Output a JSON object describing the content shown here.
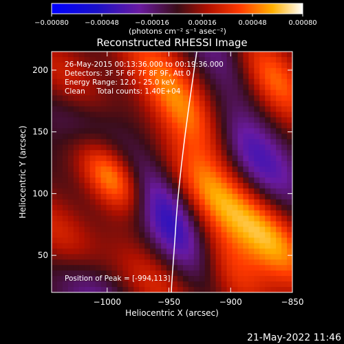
{
  "chart_data": {
    "type": "heatmap",
    "title": "Reconstructed RHESSI Image",
    "xlabel": "Heliocentric X (arcsec)",
    "ylabel": "Heliocentric Y (arcsec)",
    "xlim": [
      -1045,
      -850
    ],
    "ylim": [
      20,
      215
    ],
    "x_ticks": [
      -1000,
      -950,
      -900,
      -850
    ],
    "x_tick_labels": [
      "−1000",
      "−950",
      "−900",
      "−850"
    ],
    "y_ticks": [
      50,
      100,
      150,
      200
    ],
    "y_tick_labels": [
      "50",
      "100",
      "150",
      "200"
    ],
    "colorbar": {
      "ticks": [
        -0.0008,
        -0.00048,
        -0.00016,
        0.00016,
        0.00048,
        0.0008
      ],
      "tick_labels": [
        "−0.00080",
        "−0.00048",
        "−0.00016",
        "0.00016",
        "0.00048",
        "0.00080"
      ],
      "units_label": "(photons cm⁻² s⁻¹ asec⁻²)",
      "range": [
        -0.0008,
        0.0008
      ]
    },
    "annotations": [
      "26-May-2015 00:13:36.000 to 00:19:36.000",
      "Detectors: 3F 5F 6F 7F 8F 9F, Att 0",
      "Energy Range: 12.0 - 25.0 keV",
      "Clean     Total counts: 1.40E+04"
    ],
    "peak_label": "Position of Peak = [-994,113]",
    "peak_position": [
      -994,
      113
    ],
    "grid": false,
    "sources": [
      {
        "x": -994,
        "y": 113,
        "value": 0.0008
      },
      {
        "x": -1030,
        "y": 185,
        "value": 0.00045
      },
      {
        "x": -1035,
        "y": 60,
        "value": 0.0004
      },
      {
        "x": -935,
        "y": 165,
        "value": 0.00045
      },
      {
        "x": -915,
        "y": 100,
        "value": 0.0005
      },
      {
        "x": -905,
        "y": 40,
        "value": 0.0005
      },
      {
        "x": -870,
        "y": 195,
        "value": 0.0006
      },
      {
        "x": -865,
        "y": 60,
        "value": 0.00055
      },
      {
        "x": -965,
        "y": 210,
        "value": 0.0003
      },
      {
        "x": -960,
        "y": 25,
        "value": 0.0003
      }
    ],
    "negative_regions": [
      {
        "x": -965,
        "y": 95,
        "value": -0.00045
      },
      {
        "x": -1020,
        "y": 160,
        "value": -0.0004
      },
      {
        "x": -1015,
        "y": 25,
        "value": -0.00035
      },
      {
        "x": -900,
        "y": 210,
        "value": -0.00035
      },
      {
        "x": -930,
        "y": 55,
        "value": -0.0004
      },
      {
        "x": -880,
        "y": 130,
        "value": -0.0004
      }
    ]
  },
  "footer": {
    "timestamp": "21-May-2022 11:46"
  }
}
